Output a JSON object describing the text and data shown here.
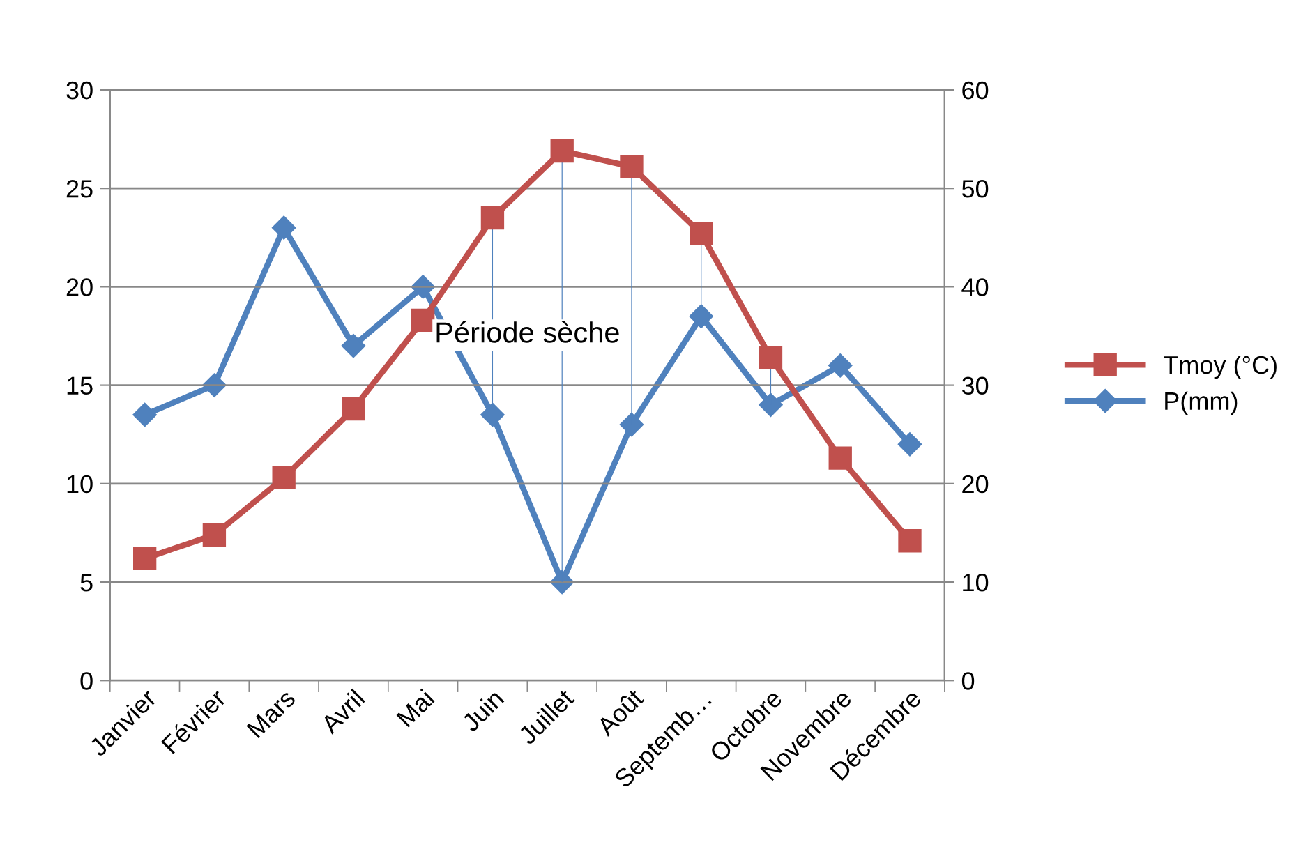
{
  "chart_data": {
    "type": "line",
    "categories": [
      "Janvier",
      "Février",
      "Mars",
      "Avril",
      "Mai",
      "Juin",
      "Juillet",
      "Août",
      "Septemb…",
      "Octobre",
      "Novembre",
      "Décembre"
    ],
    "series": [
      {
        "name": "Tmoy (°C)",
        "color": "#c0504d",
        "marker": "square",
        "values": [
          6.2,
          7.4,
          10.3,
          13.8,
          18.3,
          23.5,
          26.9,
          26.1,
          22.7,
          16.4,
          11.3,
          7.1
        ]
      },
      {
        "name": "P(mm)",
        "color": "#4f81bd",
        "marker": "diamond",
        "axis": "y2",
        "values": [
          27,
          30,
          46,
          34,
          40,
          27,
          10,
          26,
          37,
          28,
          32,
          24
        ]
      }
    ],
    "ylim": [
      0,
      30
    ],
    "yticks": [
      0,
      5,
      10,
      15,
      20,
      25,
      30
    ],
    "y2lim": [
      0,
      60
    ],
    "y2ticks": [
      0,
      10,
      20,
      30,
      40,
      50,
      60
    ],
    "grid": "y",
    "legend": "right",
    "line_style": "solid",
    "annotations": [
      "Période sèche"
    ]
  }
}
